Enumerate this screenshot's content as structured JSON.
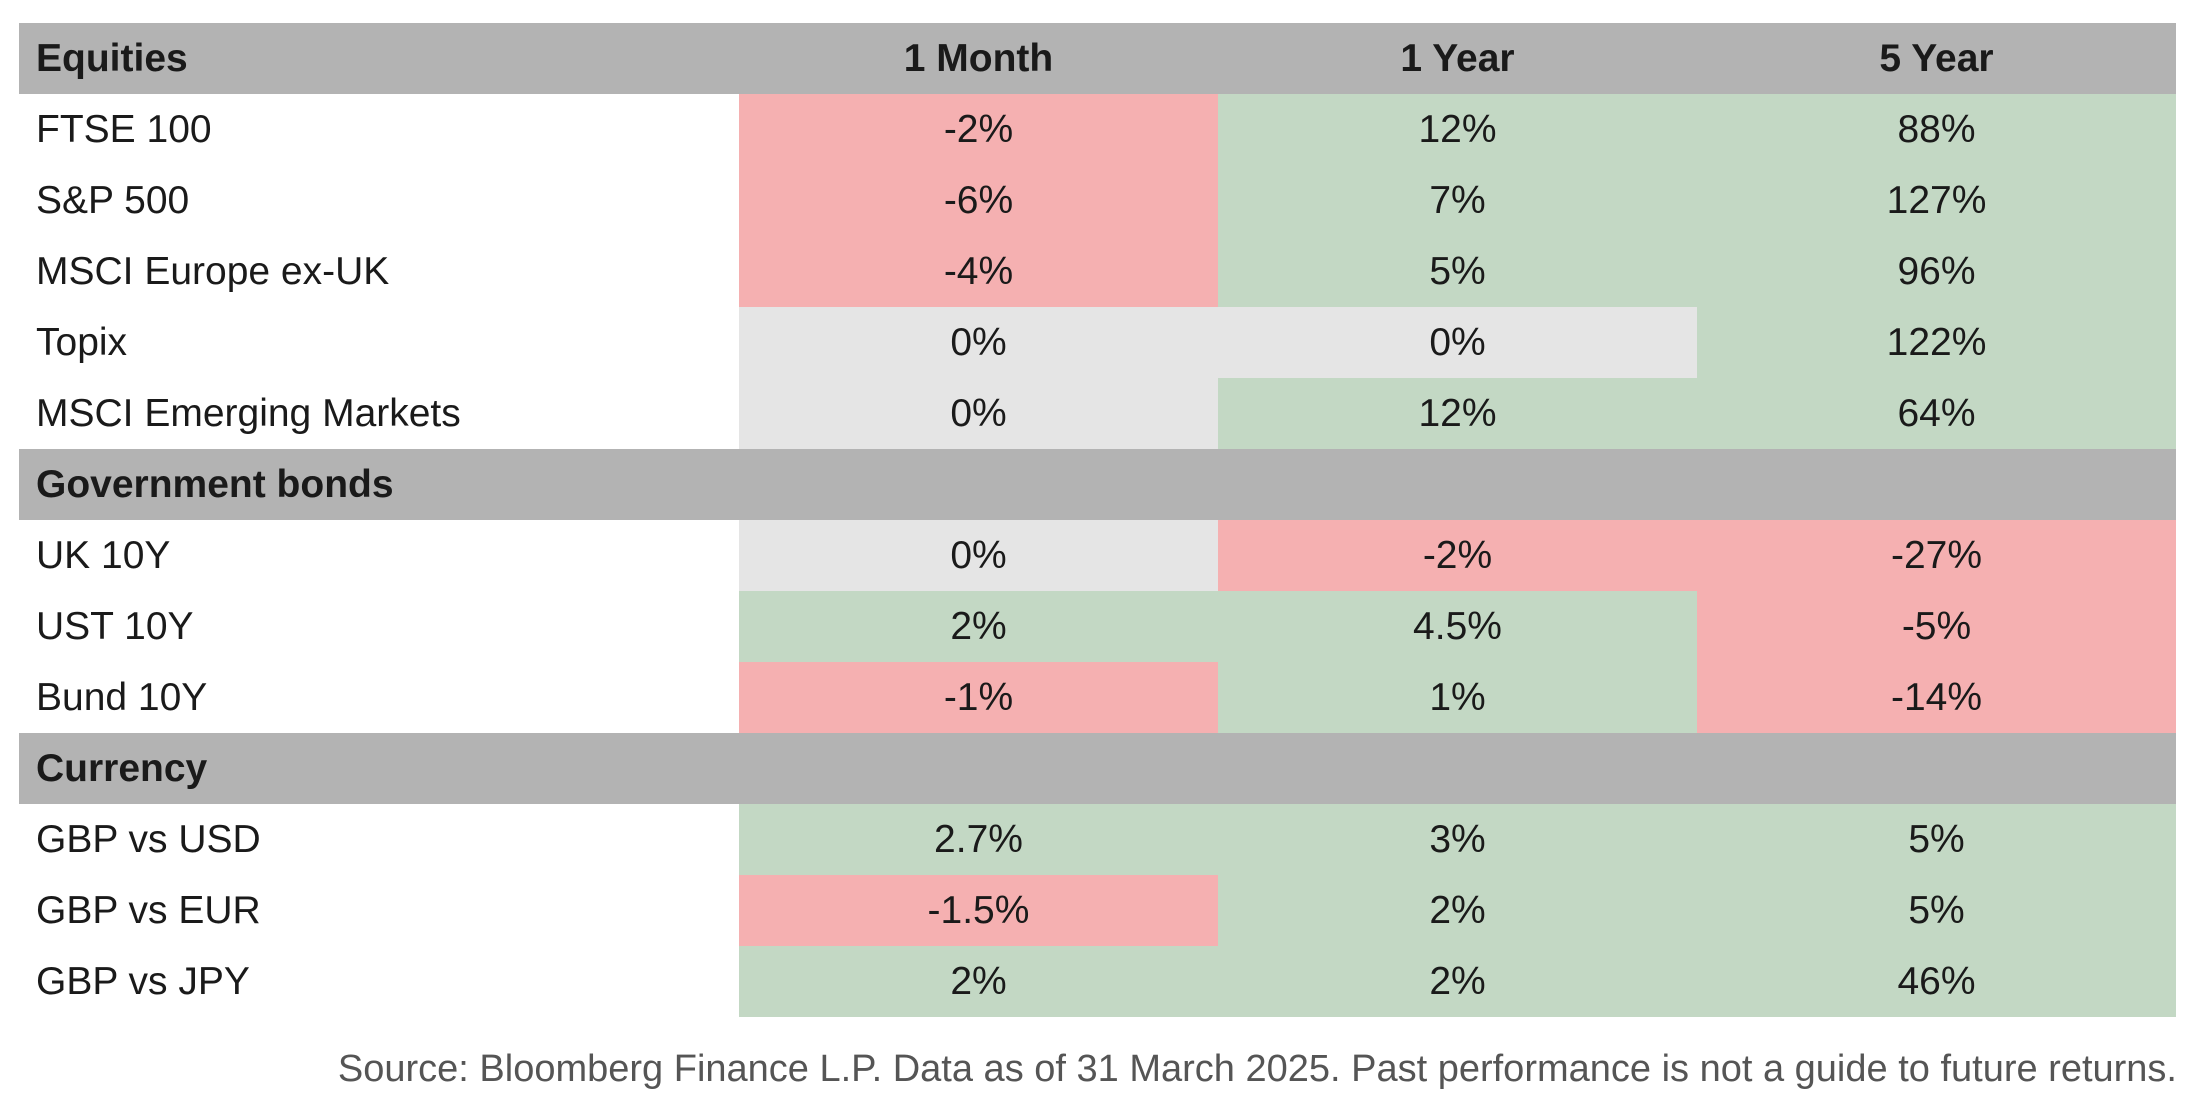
{
  "colors": {
    "header_bg": "#b3b3b3",
    "negative": "#f5b0b1",
    "positive": "#c3d8c4",
    "neutral": "#e5e5e5",
    "text": "#1a1a1a"
  },
  "columns": [
    "1 Month",
    "1 Year",
    "5 Year"
  ],
  "chart_data": {
    "type": "table",
    "columns": [
      "1 Month",
      "1 Year",
      "5 Year"
    ],
    "sections": [
      {
        "name": "Equities",
        "rows": [
          {
            "label": "FTSE 100",
            "values": [
              "-2%",
              "12%",
              "88%"
            ],
            "tones": [
              "negative",
              "positive",
              "positive"
            ]
          },
          {
            "label": "S&P 500",
            "values": [
              "-6%",
              "7%",
              "127%"
            ],
            "tones": [
              "negative",
              "positive",
              "positive"
            ]
          },
          {
            "label": "MSCI Europe ex-UK",
            "values": [
              "-4%",
              "5%",
              "96%"
            ],
            "tones": [
              "negative",
              "positive",
              "positive"
            ]
          },
          {
            "label": "Topix",
            "values": [
              "0%",
              "0%",
              "122%"
            ],
            "tones": [
              "neutral",
              "neutral",
              "positive"
            ]
          },
          {
            "label": "MSCI Emerging Markets",
            "values": [
              "0%",
              "12%",
              "64%"
            ],
            "tones": [
              "neutral",
              "positive",
              "positive"
            ]
          }
        ]
      },
      {
        "name": "Government bonds",
        "rows": [
          {
            "label": "UK 10Y",
            "values": [
              "0%",
              "-2%",
              "-27%"
            ],
            "tones": [
              "neutral",
              "negative",
              "negative"
            ]
          },
          {
            "label": "UST 10Y",
            "values": [
              "2%",
              "4.5%",
              "-5%"
            ],
            "tones": [
              "positive",
              "positive",
              "negative"
            ]
          },
          {
            "label": "Bund 10Y",
            "values": [
              "-1%",
              "1%",
              "-14%"
            ],
            "tones": [
              "negative",
              "positive",
              "negative"
            ]
          }
        ]
      },
      {
        "name": "Currency",
        "rows": [
          {
            "label": "GBP vs USD",
            "values": [
              "2.7%",
              "3%",
              "5%"
            ],
            "tones": [
              "positive",
              "positive",
              "positive"
            ]
          },
          {
            "label": "GBP vs EUR",
            "values": [
              "-1.5%",
              "2%",
              "5%"
            ],
            "tones": [
              "negative",
              "positive",
              "positive"
            ]
          },
          {
            "label": "GBP vs JPY",
            "values": [
              "2%",
              "2%",
              "46%"
            ],
            "tones": [
              "positive",
              "positive",
              "positive"
            ]
          }
        ]
      }
    ]
  },
  "source_note": "Source: Bloomberg Finance L.P. Data as of 31 March 2025. Past performance is not a guide to future returns."
}
